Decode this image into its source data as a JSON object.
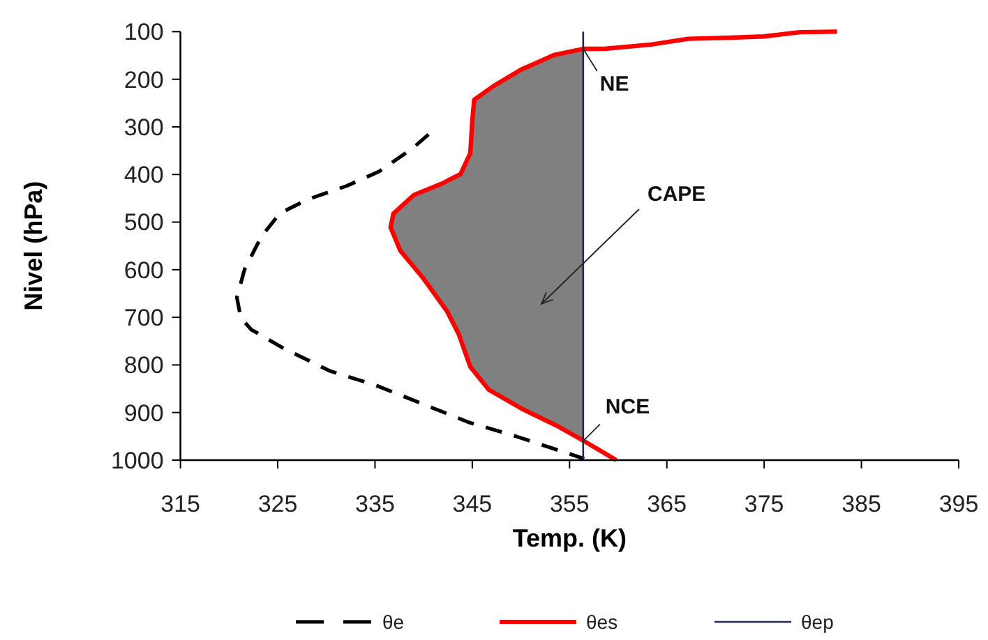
{
  "chart_data": {
    "type": "line",
    "xlabel": "Temp. (K)",
    "ylabel": "Nivel (hPa)",
    "xlim": [
      315,
      395
    ],
    "ylim": [
      1000,
      100
    ],
    "xticks": [
      315,
      325,
      335,
      345,
      355,
      365,
      375,
      385,
      395
    ],
    "yticks": [
      100,
      200,
      300,
      400,
      500,
      600,
      700,
      800,
      900,
      1000
    ],
    "legend": "bottom",
    "series": [
      {
        "type": "area",
        "color": "#808080",
        "x": [
          356.4,
          353.4,
          350.0,
          347.2,
          345.2,
          345.0,
          344.8,
          343.8,
          341.9,
          339.0,
          336.9,
          336.6,
          337.6,
          340.0,
          342.4,
          343.6,
          344.8,
          346.7,
          350.0,
          353.9,
          356.4
        ],
        "values": [
          136,
          149,
          180,
          214,
          243,
          287,
          355,
          399,
          419,
          443,
          482,
          511,
          560,
          619,
          687,
          735,
          804,
          852,
          891,
          930,
          960
        ]
      },
      {
        "name": "θe",
        "color": "#000000",
        "line_style": "dashed",
        "x": [
          340.5,
          338.8,
          335.4,
          332.1,
          328.0,
          325.2,
          323.3,
          321.6,
          320.8,
          321.2,
          322.3,
          325.6,
          330.4,
          335.1,
          339.9,
          344.7,
          349.5,
          356.5
        ],
        "values": [
          316,
          346,
          394,
          424,
          453,
          482,
          531,
          599,
          658,
          701,
          726,
          765,
          813,
          843,
          882,
          921,
          950,
          997
        ]
      },
      {
        "name": "θes",
        "color": "#ff0000",
        "line_style": "solid",
        "x": [
          382.5,
          378.7,
          375.0,
          371.1,
          367.2,
          363.4,
          358.6,
          356.5,
          353.4,
          350.0,
          347.2,
          345.2,
          345.0,
          344.8,
          343.8,
          341.9,
          339.0,
          336.9,
          336.6,
          337.6,
          340.0,
          342.4,
          343.6,
          344.8,
          346.7,
          350.0,
          353.9,
          356.5,
          359.8
        ],
        "values": [
          100,
          101,
          110,
          113,
          115,
          127,
          136,
          136,
          149,
          180,
          214,
          243,
          287,
          355,
          399,
          419,
          443,
          482,
          511,
          560,
          619,
          687,
          735,
          804,
          852,
          891,
          930,
          960,
          1000
        ]
      },
      {
        "name": "θep",
        "color": "#262650",
        "line_style": "solid",
        "x": [
          356.4,
          356.4
        ],
        "values": [
          100,
          1000
        ]
      }
    ],
    "annotations": [
      {
        "text": "NE",
        "x": 356.4,
        "y": 136
      },
      "CAPE",
      {
        "text": "NCE",
        "x": 356.4,
        "y": 960
      }
    ]
  }
}
